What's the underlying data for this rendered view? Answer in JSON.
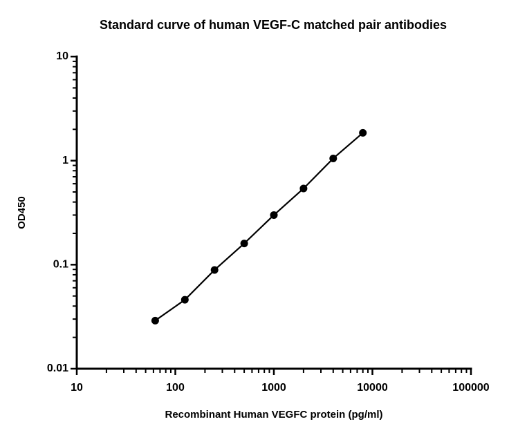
{
  "chart_data": {
    "type": "scatter",
    "title": "Standard curve of human VEGF-C matched pair antibodies",
    "x_label": "Recombinant Human VEGFC protein (pg/ml)",
    "y_label": "OD450",
    "x": [
      62.5,
      125,
      250,
      500,
      1000,
      2000,
      4000,
      8000
    ],
    "series": [
      {
        "name": "VEGF-C",
        "color": "#000000",
        "values": [
          0.029,
          0.046,
          0.089,
          0.16,
          0.3,
          0.54,
          1.05,
          1.85
        ]
      }
    ],
    "x_log": true,
    "y_log": true,
    "xlim": [
      10,
      100000
    ],
    "xticks": [
      10,
      100,
      1000,
      10000,
      100000
    ],
    "ylim": [
      0.01,
      10
    ],
    "yticks": [
      0.01,
      0.1,
      1,
      10
    ]
  }
}
